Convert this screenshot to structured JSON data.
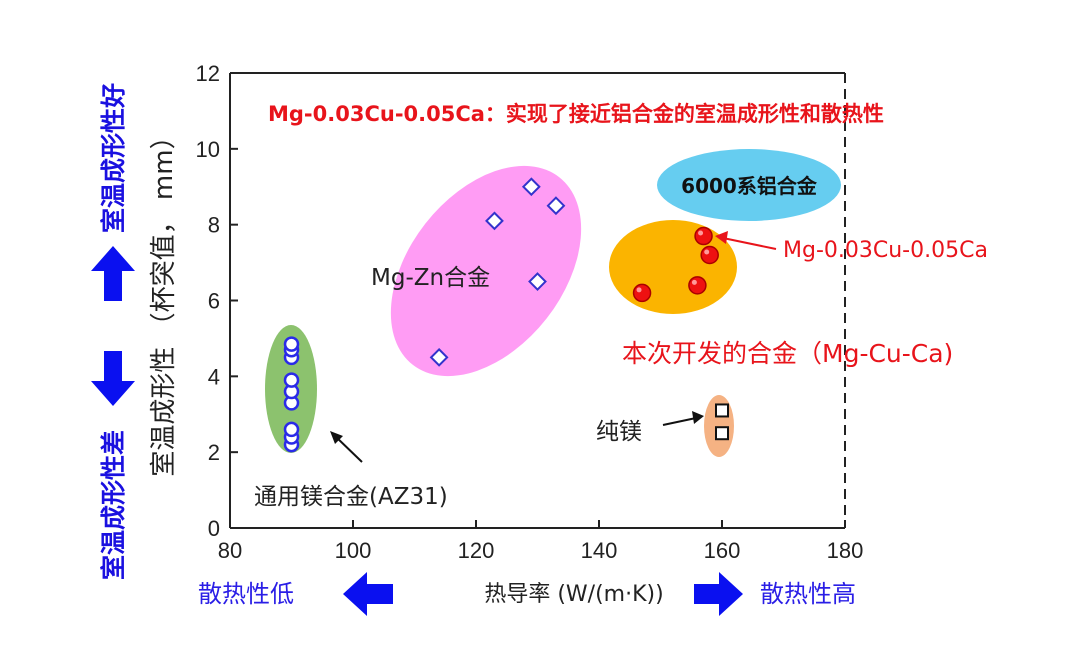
{
  "chart_data": {
    "type": "scatter",
    "title": "Mg-0.03Cu-0.05Ca：实现了接近铝合金的室温成形性和散热性",
    "xlabel": "热导率 (W/(m·K))",
    "ylabel": "室温成形性 （杯突值， mm）",
    "xlim": [
      80,
      180
    ],
    "ylim": [
      0,
      12
    ],
    "x_ticks": [
      "80",
      "100",
      "120",
      "140",
      "160",
      "180"
    ],
    "y_ticks": [
      "0",
      "2",
      "4",
      "6",
      "8",
      "10",
      "12"
    ],
    "grid": false,
    "series": [
      {
        "name": "通用镁合金(AZ31)",
        "marker": "circle-blue",
        "points": [
          [
            90,
            2.2
          ],
          [
            90,
            2.4
          ],
          [
            90,
            2.6
          ],
          [
            90,
            3.3
          ],
          [
            90,
            3.6
          ],
          [
            90,
            3.9
          ],
          [
            90,
            4.5
          ],
          [
            90,
            4.7
          ],
          [
            90,
            4.85
          ]
        ]
      },
      {
        "name": "Mg-Zn合金",
        "marker": "diamond-blue",
        "points": [
          [
            114,
            4.5
          ],
          [
            123,
            8.1
          ],
          [
            129,
            9.0
          ],
          [
            130,
            6.5
          ],
          [
            133,
            8.5
          ]
        ]
      },
      {
        "name": "本次开发的合金（Mg-Cu-Ca)",
        "marker": "circle-red",
        "points": [
          [
            147,
            6.2
          ],
          [
            156,
            6.4
          ],
          [
            157,
            7.7
          ],
          [
            158,
            7.2
          ]
        ]
      },
      {
        "name": "纯镁",
        "marker": "square-black",
        "points": [
          [
            160,
            3.1
          ],
          [
            160,
            2.5
          ]
        ]
      }
    ],
    "regions": [
      {
        "name": "6000系铝合金",
        "color": "#66cdf0"
      },
      {
        "name": "Mg-Zn合金",
        "color": "#ff9cf4"
      },
      {
        "name": "通用镁合金(AZ31)",
        "color": "#8cc26e"
      },
      {
        "name": "本次开发的合金（Mg-Cu-Ca)",
        "color": "#fbb400"
      },
      {
        "name": "纯镁",
        "color": "#f5b283"
      }
    ],
    "annotations": {
      "az31": "通用镁合金(AZ31)",
      "mgzn": "Mg-Zn合金",
      "al6000": "6000系铝合金",
      "target_alloy": "Mg-0.03Cu-0.05Ca",
      "developed": "本次开发的合金（Mg-Cu-Ca)",
      "pure_mg": "纯镁"
    },
    "side_labels": {
      "left_top": "室温成形性好",
      "left_bottom": "室温成形性差",
      "bottom_left": "散热性低",
      "bottom_right": "散热性高"
    },
    "colors": {
      "arrow_blue": "#0a10f0",
      "red_text": "#e8141b",
      "blue_text": "#1a10e0"
    }
  }
}
